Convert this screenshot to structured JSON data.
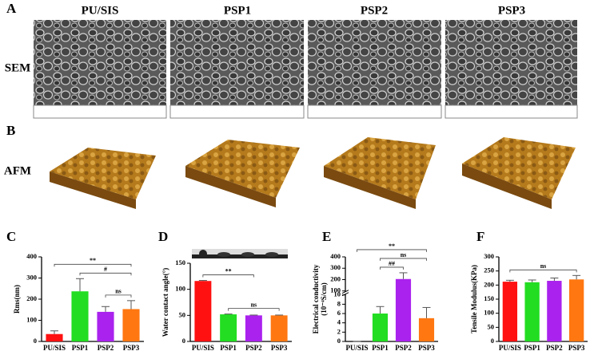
{
  "figure": {
    "panel_labels": [
      "A",
      "B",
      "C",
      "D",
      "E",
      "F"
    ],
    "columns": [
      "PU/SIS",
      "PSP1",
      "PSP2",
      "PSP3"
    ],
    "rows": [
      "SEM",
      "AFM"
    ]
  },
  "chart_data": [
    {
      "type": "bar",
      "ylabel": "Rms(nm)",
      "categories": [
        "PU/SIS",
        "PSP1",
        "PSP2",
        "PSP3"
      ],
      "values": [
        35,
        237,
        140,
        153
      ],
      "errors": [
        15,
        60,
        25,
        40
      ],
      "colors": [
        "#ff1111",
        "#22dd22",
        "#aa22ee",
        "#ff7711"
      ],
      "ylim": [
        0,
        400
      ],
      "yticks": [
        0,
        100,
        200,
        300,
        400
      ],
      "annotations": [
        {
          "text": "ns",
          "from": 2,
          "to": 3
        },
        {
          "text": "#",
          "from": 1,
          "to": 3
        },
        {
          "text": "**",
          "from": 0,
          "to": 3
        }
      ]
    },
    {
      "type": "bar",
      "ylabel": "Water contact angle(°)",
      "categories": [
        "PU/SIS",
        "PSP1",
        "PSP2",
        "PSP3"
      ],
      "values": [
        116,
        52,
        50,
        50
      ],
      "errors": [
        1,
        0.6,
        0.6,
        0.6
      ],
      "colors": [
        "#ff1111",
        "#22dd22",
        "#aa22ee",
        "#ff7711"
      ],
      "ylim": [
        0,
        150
      ],
      "yticks": [
        0,
        50,
        100,
        150
      ],
      "annotations": [
        {
          "text": "ns",
          "from": 1,
          "to": 3
        },
        {
          "text": "**",
          "from": 0,
          "to": 2
        }
      ]
    },
    {
      "type": "bar",
      "ylabel": [
        "Electrical conductivity",
        "(10⁻⁴S/cm)"
      ],
      "categories": [
        "PU/SIS",
        "PSP1",
        "PSP2",
        "PSP3"
      ],
      "values": [
        0,
        6,
        205,
        5
      ],
      "errors": [
        0,
        1.5,
        55,
        2.3
      ],
      "colors": [
        "#ff1111",
        "#22dd22",
        "#aa22ee",
        "#ff7711"
      ],
      "ylim": [
        0,
        400
      ],
      "ybreak": [
        10,
        100
      ],
      "yticks": [
        0,
        2,
        4,
        6,
        8,
        10,
        100,
        200,
        300,
        400
      ],
      "annotations": [
        {
          "text": "##",
          "from": 1,
          "to": 2
        },
        {
          "text": "ns",
          "from": 1,
          "to": 3
        },
        {
          "text": "**",
          "from": 0,
          "to": 3
        }
      ]
    },
    {
      "type": "bar",
      "ylabel": "Tensile Modulus(KPa)",
      "categories": [
        "PU/SIS",
        "PSP1",
        "PSP2",
        "PSP3"
      ],
      "values": [
        212,
        210,
        215,
        220
      ],
      "errors": [
        5,
        8,
        10,
        14
      ],
      "colors": [
        "#ff1111",
        "#22dd22",
        "#aa22ee",
        "#ff7711"
      ],
      "ylim": [
        0,
        300
      ],
      "yticks": [
        0,
        50,
        100,
        150,
        200,
        250,
        300
      ],
      "annotations": [
        {
          "text": "ns",
          "from": 0,
          "to": 3
        }
      ]
    }
  ]
}
